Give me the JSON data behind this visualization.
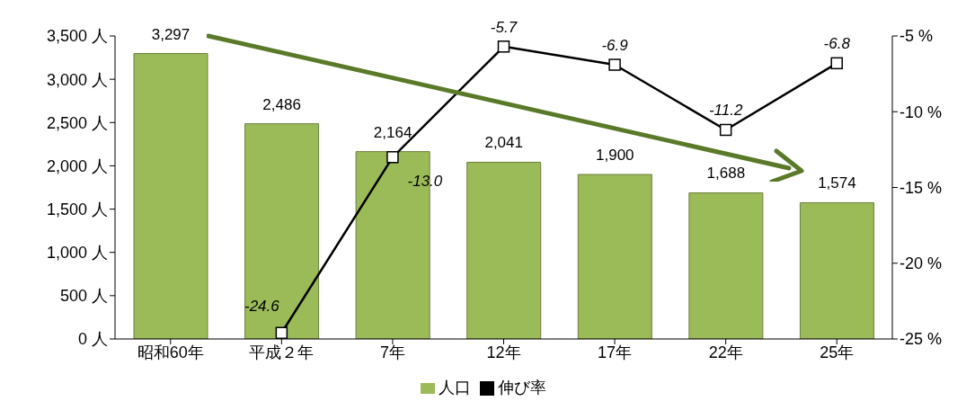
{
  "chart_data": {
    "type": "bar",
    "categories": [
      "昭和60年",
      "平成２年",
      "7年",
      "12年",
      "17年",
      "22年",
      "25年"
    ],
    "series": [
      {
        "name": "人口",
        "color": "#9bbb59",
        "values": [
          3297,
          2486,
          2164,
          2041,
          1900,
          1688,
          1574
        ],
        "value_labels": [
          "3,297",
          "2,486",
          "2,164",
          "2,041",
          "1,900",
          "1,688",
          "1,574"
        ]
      },
      {
        "name": "伸び率",
        "type": "line",
        "axis": "y2",
        "color": "#000000",
        "values": [
          null,
          -24.6,
          -13.0,
          -5.7,
          -6.9,
          -11.2,
          -6.8
        ],
        "value_labels": [
          null,
          "-24.6",
          "-13.0",
          "-5.7",
          "-6.9",
          "-11.2",
          "-6.8"
        ]
      }
    ],
    "ylim": [
      0,
      3500
    ],
    "yticks": [
      {
        "value": 0,
        "label": "0 人"
      },
      {
        "value": 500,
        "label": "500 人"
      },
      {
        "value": 1000,
        "label": "1,000 人"
      },
      {
        "value": 1500,
        "label": "1,500 人"
      },
      {
        "value": 2000,
        "label": "2,000 人"
      },
      {
        "value": 2500,
        "label": "2,500 人"
      },
      {
        "value": 3000,
        "label": "3,000 人"
      },
      {
        "value": 3500,
        "label": "3,500 人"
      }
    ],
    "y2lim": [
      -25,
      -5
    ],
    "y2ticks": [
      {
        "value": -25,
        "label": "-25 %"
      },
      {
        "value": -20,
        "label": "-20 %"
      },
      {
        "value": -15,
        "label": "-15 %"
      },
      {
        "value": -10,
        "label": "-10 %"
      },
      {
        "value": -5,
        "label": "-5 %"
      }
    ],
    "marker": "square",
    "grid": false,
    "legend": "bottom"
  }
}
